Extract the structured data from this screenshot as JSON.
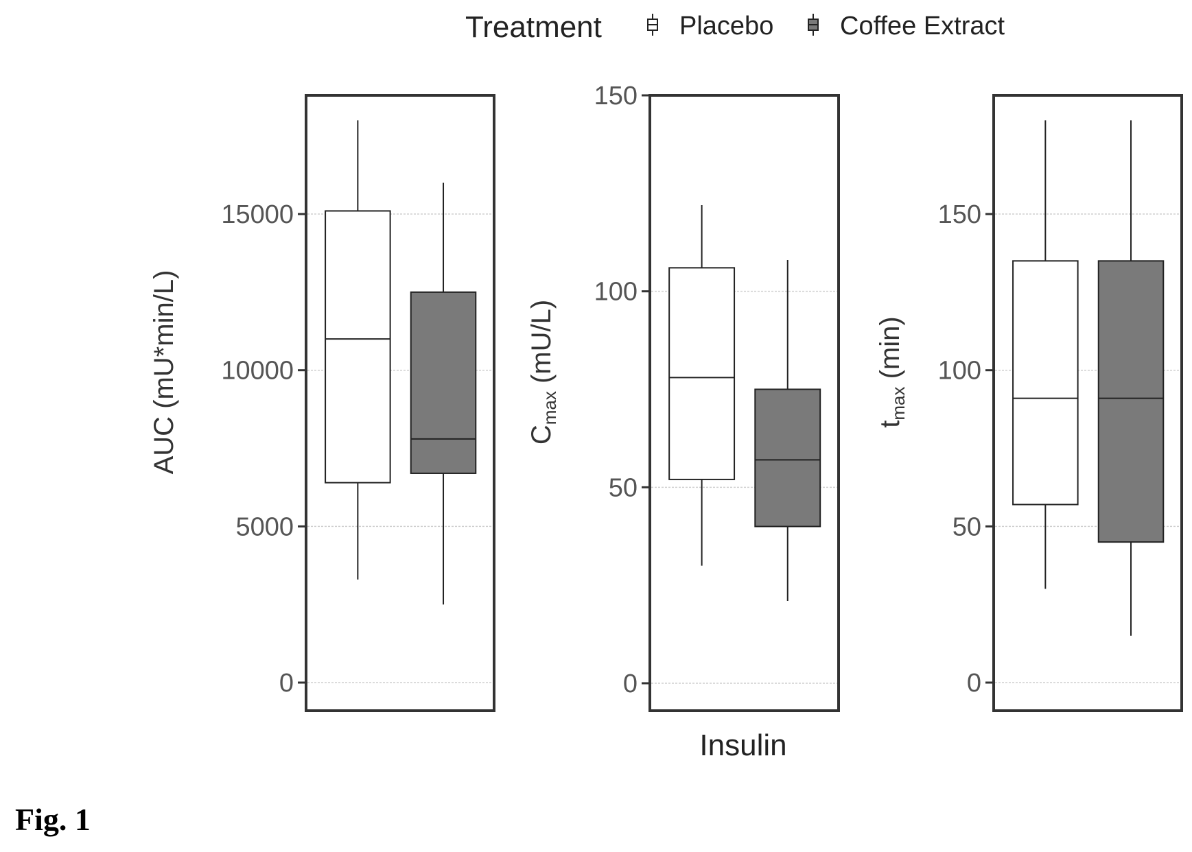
{
  "figure_label": "Fig. 1",
  "legend": {
    "title": "Treatment",
    "entries": [
      {
        "label": "Placebo",
        "fill": "#ffffff"
      },
      {
        "label": "Coffee Extract",
        "fill": "#7a7a7a"
      }
    ]
  },
  "colors": {
    "placebo": "#ffffff",
    "coffee_extract": "#7a7a7a",
    "grid": "#cfcfcf",
    "axis_text": "#555555"
  },
  "chart_data": [
    {
      "type": "box",
      "panel": "AUC",
      "ylabel": "AUC (mU*min/L)",
      "ylabel_main": "AUC (mU*min/L)",
      "ylabel_sub": "",
      "ylim": [
        -900,
        18800
      ],
      "yticks": [
        0,
        5000,
        10000,
        15000
      ],
      "ytick_labels": [
        "0",
        "5000",
        "10000",
        "15000"
      ],
      "grid": true,
      "boxes": [
        {
          "treatment": "Placebo",
          "whisker_low": 3300,
          "q1": 6400,
          "median": 11000,
          "q3": 15100,
          "whisker_high": 18000
        },
        {
          "treatment": "Coffee Extract",
          "whisker_low": 2500,
          "q1": 6700,
          "median": 7800,
          "q3": 12500,
          "whisker_high": 16000
        }
      ]
    },
    {
      "type": "box",
      "panel": "Cmax",
      "ylabel": "Cmax (mU/L)",
      "ylabel_main": "C",
      "ylabel_sub": "max",
      "ylabel_rest": " (mU/L)",
      "ylim": [
        -7,
        150
      ],
      "yticks": [
        0,
        50,
        100,
        150
      ],
      "ytick_labels": [
        "0",
        "50",
        "100",
        "150"
      ],
      "grid": true,
      "xlabel": "Insulin",
      "boxes": [
        {
          "treatment": "Placebo",
          "whisker_low": 30,
          "q1": 52,
          "median": 78,
          "q3": 106,
          "whisker_high": 122
        },
        {
          "treatment": "Coffee Extract",
          "whisker_low": 21,
          "q1": 40,
          "median": 57,
          "q3": 75,
          "whisker_high": 108
        }
      ]
    },
    {
      "type": "box",
      "panel": "tmax",
      "ylabel": "tmax (min)",
      "ylabel_main": "t",
      "ylabel_sub": "max",
      "ylabel_rest": " (min)",
      "ylim": [
        -9,
        188
      ],
      "yticks": [
        0,
        50,
        100,
        150
      ],
      "ytick_labels": [
        "0",
        "50",
        "100",
        "150"
      ],
      "grid": true,
      "boxes": [
        {
          "treatment": "Placebo",
          "whisker_low": 30,
          "q1": 57,
          "median": 91,
          "q3": 135,
          "whisker_high": 180
        },
        {
          "treatment": "Coffee Extract",
          "whisker_low": 15,
          "q1": 45,
          "median": 91,
          "q3": 135,
          "whisker_high": 180
        }
      ]
    }
  ]
}
